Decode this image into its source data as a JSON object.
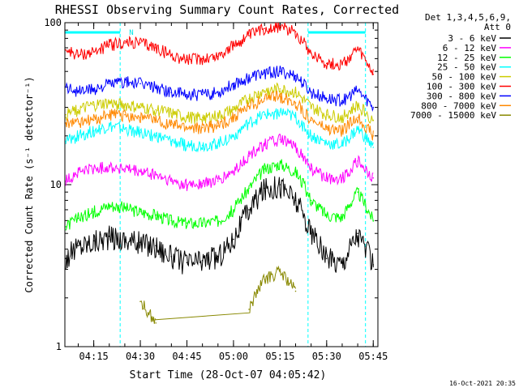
{
  "chart_data": {
    "type": "line",
    "title": "RHESSI Observing Summary Count Rates, Corrected",
    "xlabel": "Start Time (28-Oct-07 04:05:42)",
    "ylabel": "Corrected Count Rate (s⁻¹ detector⁻¹)",
    "y_scale": "log",
    "ylim": [
      1,
      100
    ],
    "xlim": [
      "04:05:42",
      "05:46:30"
    ],
    "x_ticks": [
      "04:15",
      "04:30",
      "04:45",
      "05:00",
      "05:15",
      "05:30",
      "05:45"
    ],
    "y_ticks": [
      "1",
      "10",
      "100"
    ],
    "legend": {
      "placement": "top-right",
      "header": [
        "Det 1,3,4,5,6,9,",
        "Att 0"
      ]
    },
    "attenuator_marker": "N",
    "night_intervals": [
      [
        "04:05:42",
        "04:23:30"
      ],
      [
        "05:24:00",
        "05:42:30"
      ]
    ],
    "annotations": {
      "timestamp": "16-Oct-2021 20:35"
    },
    "x": [
      "04:06",
      "04:10",
      "04:15",
      "04:20",
      "04:25",
      "04:30",
      "04:35",
      "04:40",
      "04:45",
      "04:50",
      "04:55",
      "05:00",
      "05:05",
      "05:10",
      "05:15",
      "05:20",
      "05:25",
      "05:30",
      "05:35",
      "05:40",
      "05:45"
    ],
    "series": [
      {
        "name": "3 - 6 keV",
        "color": "#000000",
        "values": [
          3.5,
          4.2,
          4.5,
          4.8,
          4.6,
          4.4,
          4.2,
          3.6,
          3.3,
          3.4,
          3.6,
          4.6,
          7.0,
          9.5,
          10.0,
          8.0,
          5.0,
          3.5,
          3.3,
          5.0,
          3.2
        ]
      },
      {
        "name": "6 - 12 keV",
        "color": "#ff00ff",
        "values": [
          10.5,
          12.0,
          12.5,
          13.0,
          12.5,
          12.0,
          11.5,
          10.5,
          10.0,
          10.2,
          10.5,
          12.0,
          15.0,
          18.0,
          19.0,
          17.0,
          12.5,
          11.0,
          11.0,
          14.0,
          11.0
        ]
      },
      {
        "name": "12 - 25 keV",
        "color": "#00ff00",
        "values": [
          5.5,
          6.2,
          6.8,
          7.5,
          7.2,
          6.8,
          6.5,
          6.0,
          5.8,
          5.8,
          6.0,
          7.0,
          9.5,
          12.5,
          13.5,
          12.0,
          8.0,
          6.5,
          6.3,
          9.0,
          6.0
        ]
      },
      {
        "name": "25 - 50 keV",
        "color": "#00ffff",
        "values": [
          18.5,
          20.0,
          21.5,
          23.0,
          22.0,
          21.0,
          20.0,
          18.5,
          17.5,
          17.5,
          18.0,
          20.0,
          24.0,
          27.0,
          28.0,
          26.0,
          20.0,
          18.0,
          17.5,
          22.0,
          17.0
        ]
      },
      {
        "name": "50 - 100 keV",
        "color": "#cccc00",
        "values": [
          27.0,
          29.0,
          31.0,
          32.0,
          31.0,
          30.0,
          29.0,
          27.5,
          26.0,
          26.0,
          26.5,
          29.0,
          34.0,
          38.0,
          39.0,
          37.0,
          30.0,
          27.0,
          26.0,
          31.0,
          25.0
        ]
      },
      {
        "name": "100 - 300 keV",
        "color": "#ff0000",
        "values": [
          68.0,
          63.0,
          66.0,
          73.0,
          75.0,
          75.0,
          70.0,
          63.0,
          59.0,
          60.0,
          62.0,
          72.0,
          83.0,
          92.0,
          95.0,
          88.0,
          65.0,
          56.0,
          55.0,
          68.0,
          48.0
        ]
      },
      {
        "name": "300 - 800 keV",
        "color": "#0000ff",
        "values": [
          40.0,
          38.0,
          39.0,
          42.0,
          43.0,
          42.0,
          40.0,
          37.0,
          36.0,
          36.0,
          37.0,
          42.0,
          46.0,
          49.0,
          50.0,
          47.0,
          37.0,
          34.0,
          33.0,
          38.0,
          30.0
        ]
      },
      {
        "name": "800 - 7000 keV",
        "color": "#ff8800",
        "values": [
          24.0,
          24.5,
          25.0,
          27.0,
          27.0,
          26.0,
          25.0,
          23.5,
          22.5,
          22.5,
          23.0,
          26.0,
          30.5,
          34.0,
          35.0,
          32.0,
          25.0,
          22.0,
          21.5,
          26.0,
          20.0
        ]
      },
      {
        "name": "7000 - 15000 keV",
        "color": "#888800",
        "values": [
          null,
          null,
          null,
          null,
          null,
          1.9,
          1.4,
          null,
          null,
          null,
          null,
          null,
          1.7,
          2.6,
          2.9,
          2.2,
          null,
          null,
          null,
          null,
          null
        ]
      }
    ]
  }
}
